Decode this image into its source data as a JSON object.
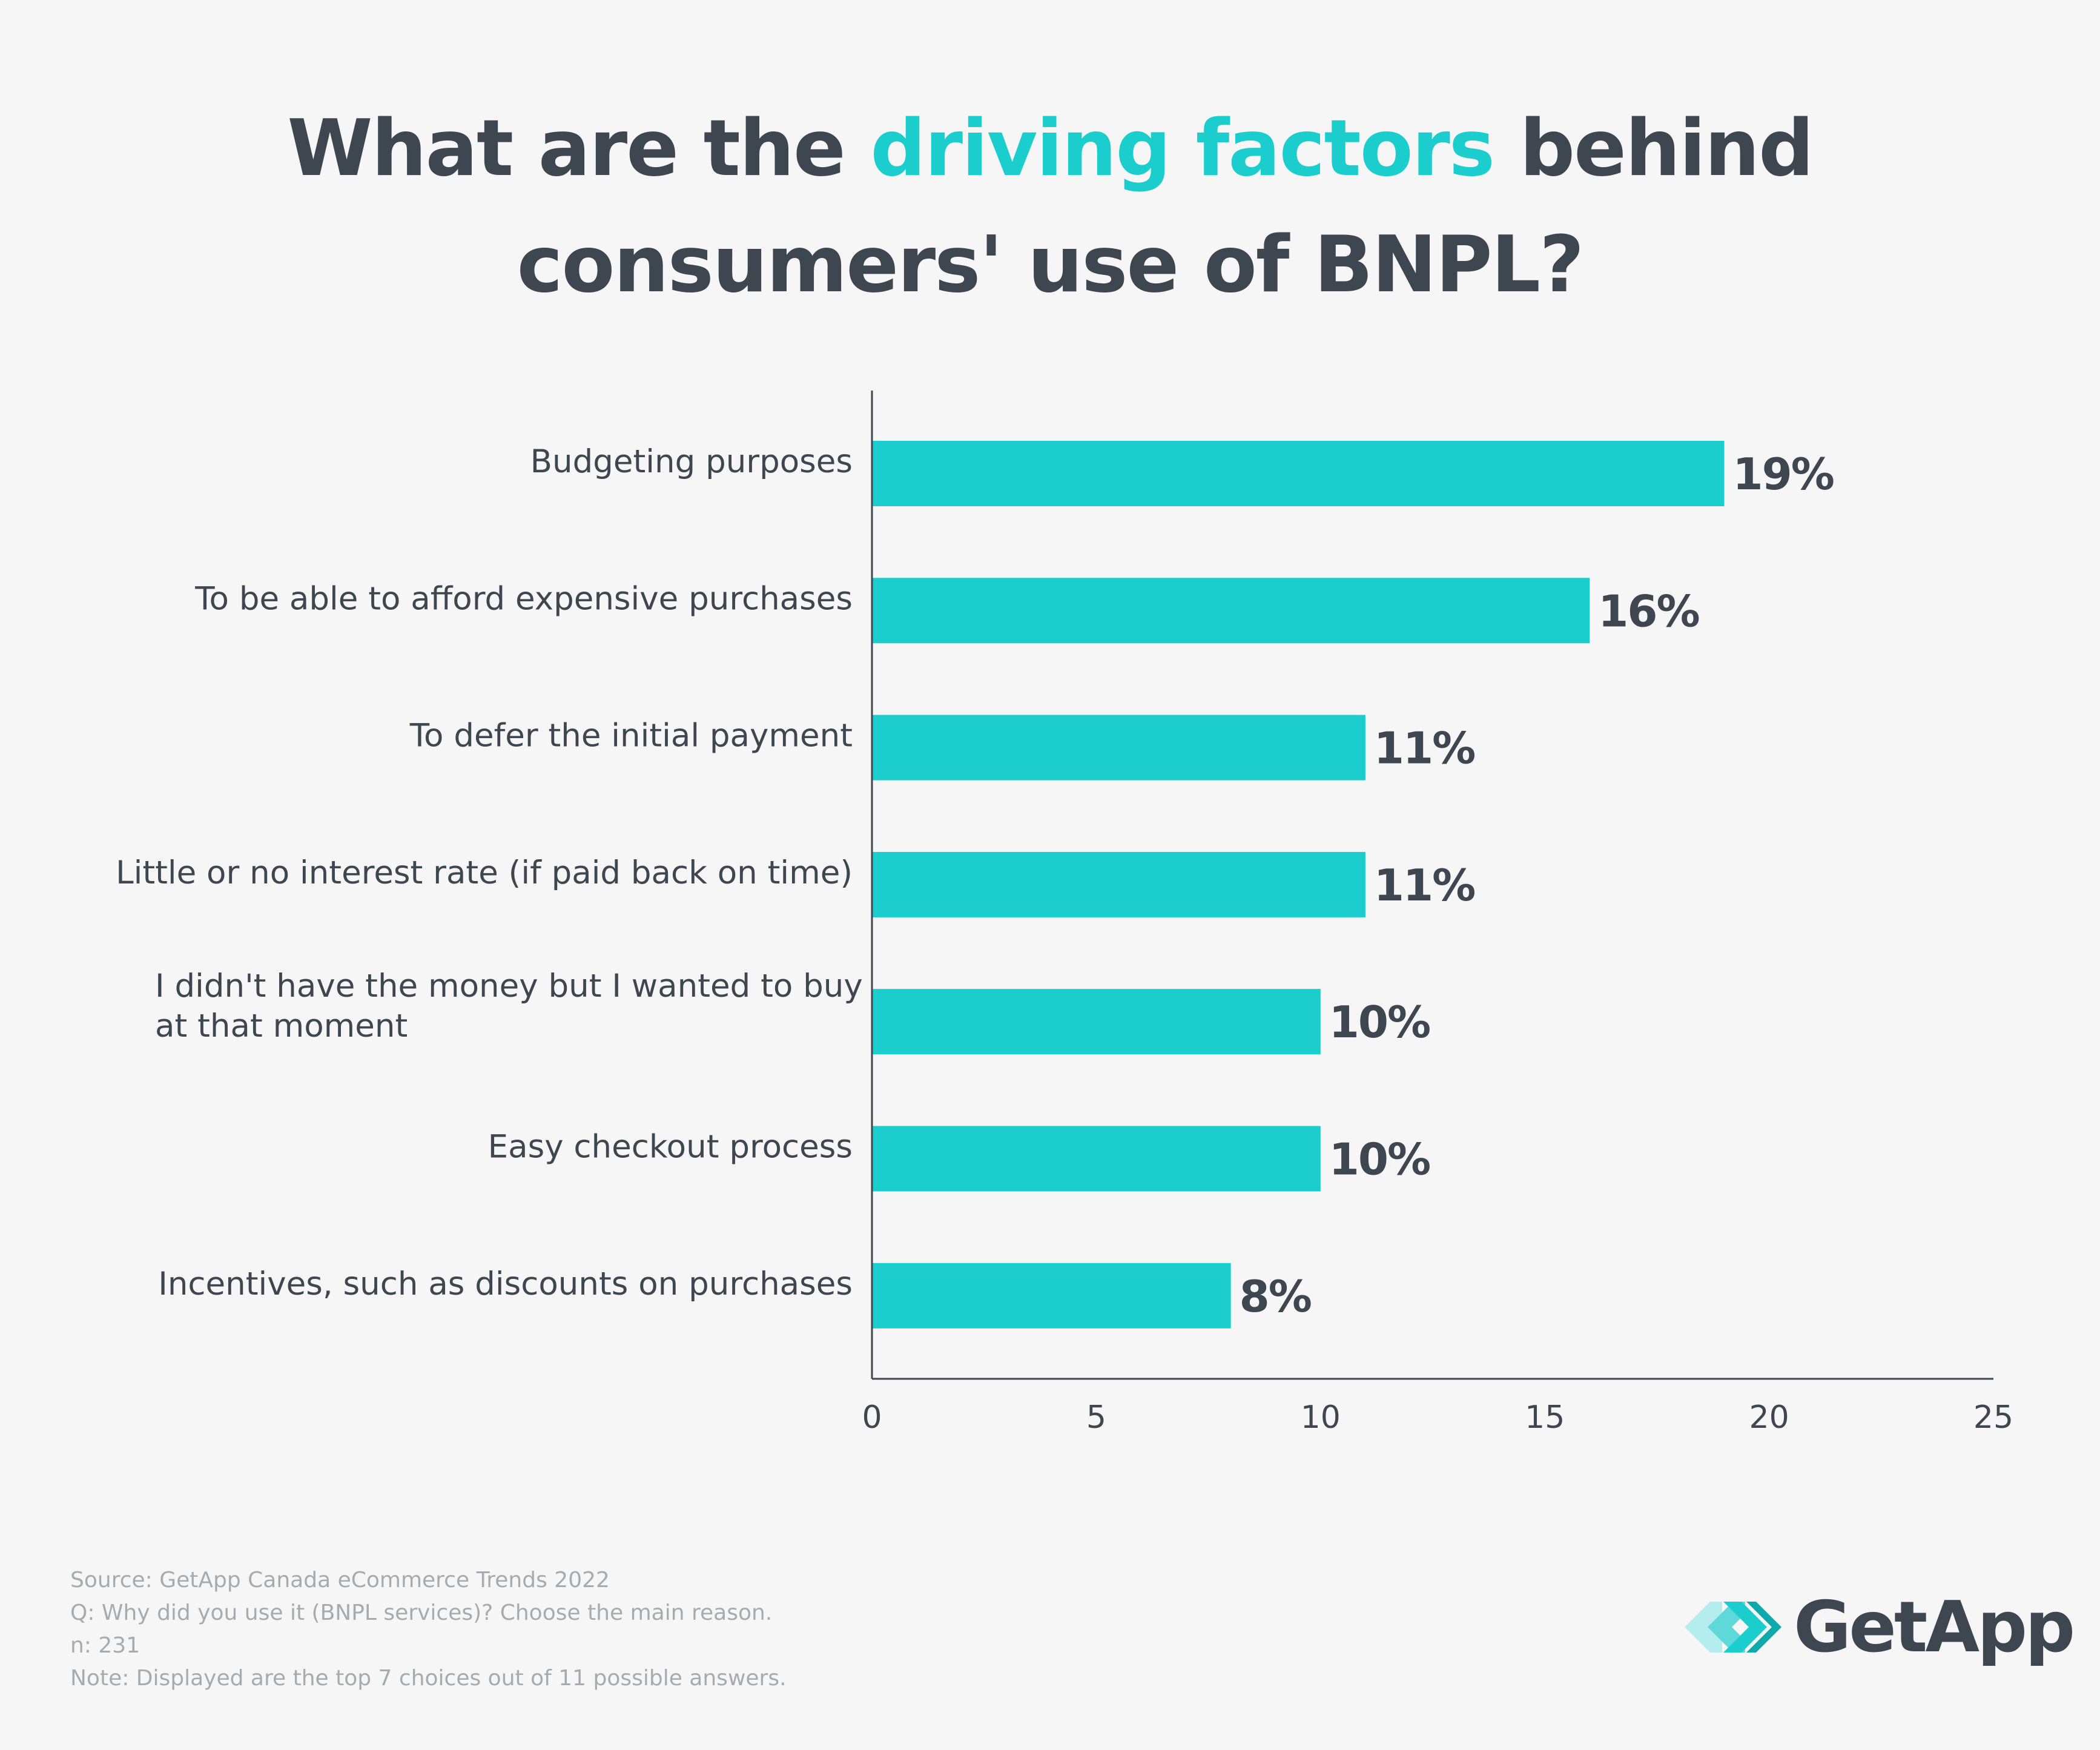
{
  "title": {
    "part1": "What are the ",
    "highlight": "driving factors",
    "part2": " behind",
    "line2": "consumers' use of BNPL?"
  },
  "colors": {
    "accent": "#1ccdcd",
    "bar": "#1ccdcd",
    "text": "#3e4650",
    "muted": "#a7abae",
    "background": "#f6f6f6"
  },
  "chart_data": {
    "type": "bar",
    "orientation": "horizontal",
    "categories": [
      "Budgeting purposes",
      "To be able to afford expensive purchases",
      "To defer the initial payment",
      "Little or no interest rate (if paid back on time)",
      "I didn't have the money but I wanted to buy at that moment",
      "Easy checkout process",
      "Incentives, such as discounts on purchases"
    ],
    "category_lines": [
      [
        "Budgeting purposes"
      ],
      [
        "To be able to afford expensive purchases"
      ],
      [
        "To defer the initial payment"
      ],
      [
        "Little or no interest rate (if paid back on time)"
      ],
      [
        "I didn't have the money but I wanted to buy",
        "at that moment"
      ],
      [
        "Easy checkout process"
      ],
      [
        "Incentives, such as discounts on purchases"
      ]
    ],
    "values": [
      19,
      16,
      11,
      11,
      10,
      10,
      8
    ],
    "data_labels": [
      "19%",
      "16%",
      "11%",
      "11%",
      "10%",
      "10%",
      "8%"
    ],
    "xlim": [
      0,
      25
    ],
    "xticks": [
      0,
      5,
      10,
      15,
      20,
      25
    ],
    "xlabel": "",
    "ylabel": "",
    "grid": false,
    "legend": "none"
  },
  "footnotes": [
    "Source: GetApp Canada eCommerce Trends 2022",
    "Q: Why did you use it (BNPL services)? Choose the main reason.",
    "n: 231",
    "Note: Displayed are the top 7 choices out of 11 possible answers."
  ],
  "logo": {
    "text": "GetApp",
    "icon": "getapp-chevrons-icon"
  }
}
